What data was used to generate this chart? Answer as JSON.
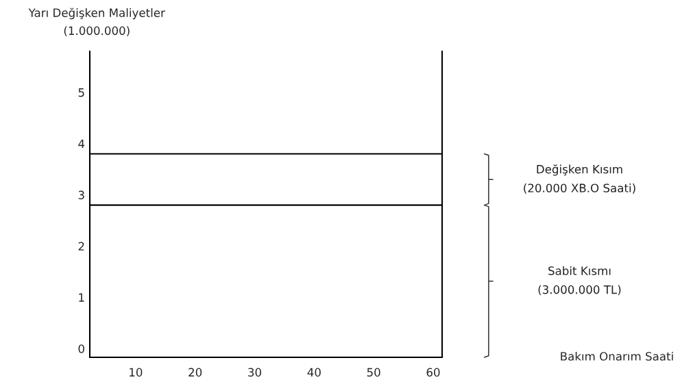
{
  "chart_data": {
    "type": "line",
    "ylabel": "Yarı Değişken Maliyetler\n(1.000.000)",
    "xlim": [
      2.3,
      61.5
    ],
    "ylim": [
      -0.17,
      5.8
    ],
    "xticks": [
      10,
      20,
      30,
      40,
      50,
      60
    ],
    "yticks": [
      0,
      1,
      2,
      3,
      4,
      5
    ],
    "x": [
      2.3,
      61.5
    ],
    "series": [
      {
        "color": "#000000",
        "values": [
          3.8,
          3.8
        ]
      },
      {
        "color": "#000000",
        "values": [
          2.8,
          2.8
        ]
      }
    ],
    "annotations": [
      "Değişken Kısım\n(20.000 XB.O Saati)",
      "Sabit Kısmı\n(3.000.000 TL)",
      "Bakım Onarım Saati"
    ],
    "grid": false
  }
}
